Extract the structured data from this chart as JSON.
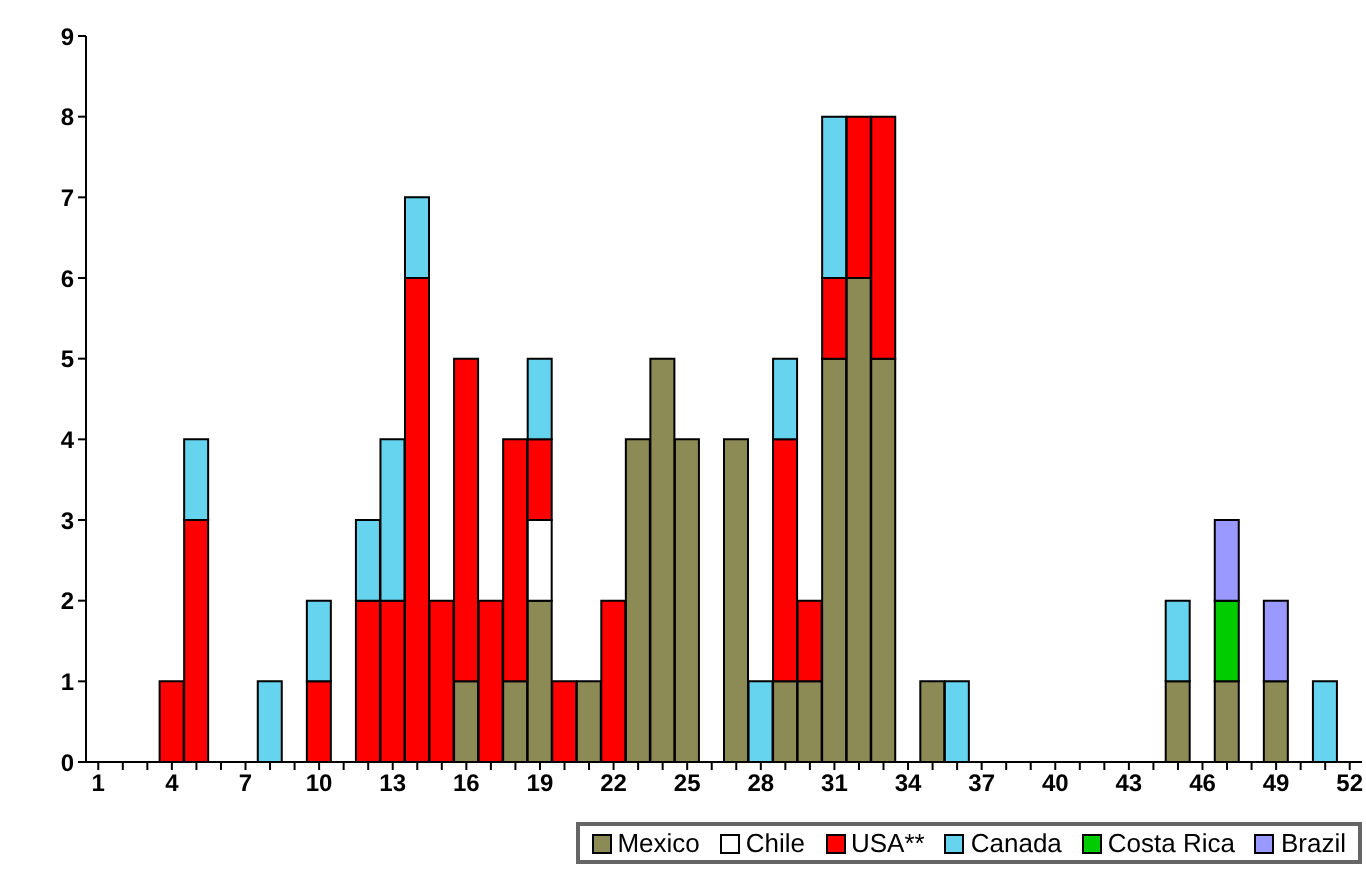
{
  "chart_data": {
    "type": "bar",
    "stacked": true,
    "categories": [
      "1",
      null,
      null,
      "4",
      null,
      null,
      "7",
      null,
      null,
      "10",
      null,
      null,
      "13",
      null,
      null,
      "16",
      null,
      null,
      "19",
      null,
      null,
      "22",
      null,
      null,
      "25",
      null,
      null,
      "28",
      null,
      null,
      "31",
      null,
      null,
      "34",
      null,
      null,
      "37",
      null,
      null,
      "40",
      null,
      null,
      "43",
      null,
      null,
      "46",
      null,
      null,
      "49",
      null,
      null,
      "52"
    ],
    "series": [
      {
        "name": "Mexico",
        "color": "#8c8a55",
        "values": [
          0,
          0,
          0,
          0,
          0,
          0,
          0,
          0,
          0,
          0,
          0,
          0,
          0,
          0,
          0,
          1,
          0,
          1,
          2,
          0,
          1,
          0,
          4,
          5,
          4,
          0,
          4,
          0,
          1,
          1,
          5,
          6,
          5,
          0,
          1,
          0,
          0,
          0,
          0,
          0,
          0,
          0,
          0,
          0,
          1,
          0,
          1,
          0,
          1,
          0,
          0,
          0
        ]
      },
      {
        "name": "Chile",
        "color": "#ffffff",
        "values": [
          0,
          0,
          0,
          0,
          0,
          0,
          0,
          0,
          0,
          0,
          0,
          0,
          0,
          0,
          0,
          0,
          0,
          0,
          1,
          0,
          0,
          0,
          0,
          0,
          0,
          0,
          0,
          0,
          0,
          0,
          0,
          0,
          0,
          0,
          0,
          0,
          0,
          0,
          0,
          0,
          0,
          0,
          0,
          0,
          0,
          0,
          0,
          0,
          0,
          0,
          0,
          0
        ]
      },
      {
        "name": "USA**",
        "color": "#ff0000",
        "values": [
          0,
          0,
          0,
          1,
          3,
          0,
          0,
          0,
          0,
          1,
          0,
          2,
          2,
          6,
          2,
          4,
          2,
          3,
          1,
          1,
          0,
          2,
          0,
          0,
          0,
          0,
          0,
          0,
          3,
          1,
          1,
          2,
          3,
          0,
          0,
          0,
          0,
          0,
          0,
          0,
          0,
          0,
          0,
          0,
          0,
          0,
          0,
          0,
          0,
          0,
          0,
          0
        ]
      },
      {
        "name": "Canada",
        "color": "#66d4ee",
        "values": [
          0,
          0,
          0,
          0,
          1,
          0,
          0,
          1,
          0,
          1,
          0,
          1,
          2,
          1,
          0,
          0,
          0,
          0,
          1,
          0,
          0,
          0,
          0,
          0,
          0,
          0,
          0,
          1,
          1,
          0,
          2,
          0,
          0,
          0,
          0,
          1,
          0,
          0,
          0,
          0,
          0,
          0,
          0,
          0,
          1,
          0,
          0,
          0,
          0,
          0,
          1,
          0
        ]
      },
      {
        "name": "Costa Rica",
        "color": "#00cc00",
        "values": [
          0,
          0,
          0,
          0,
          0,
          0,
          0,
          0,
          0,
          0,
          0,
          0,
          0,
          0,
          0,
          0,
          0,
          0,
          0,
          0,
          0,
          0,
          0,
          0,
          0,
          0,
          0,
          0,
          0,
          0,
          0,
          0,
          0,
          0,
          0,
          0,
          0,
          0,
          0,
          0,
          0,
          0,
          0,
          0,
          0,
          0,
          1,
          0,
          0,
          0,
          0,
          0
        ]
      },
      {
        "name": "Brazil",
        "color": "#9999ff",
        "values": [
          0,
          0,
          0,
          0,
          0,
          0,
          0,
          0,
          0,
          0,
          0,
          0,
          0,
          0,
          0,
          0,
          0,
          0,
          0,
          0,
          0,
          0,
          0,
          0,
          0,
          0,
          0,
          0,
          0,
          0,
          0,
          0,
          0,
          0,
          0,
          0,
          0,
          0,
          0,
          0,
          0,
          0,
          0,
          0,
          0,
          0,
          1,
          0,
          1,
          0,
          0,
          0
        ]
      }
    ],
    "ylim": [
      0,
      9
    ],
    "yticks": [
      0,
      1,
      2,
      3,
      4,
      5,
      6,
      7,
      8,
      9
    ],
    "grid": false,
    "legend": "bottom right"
  }
}
